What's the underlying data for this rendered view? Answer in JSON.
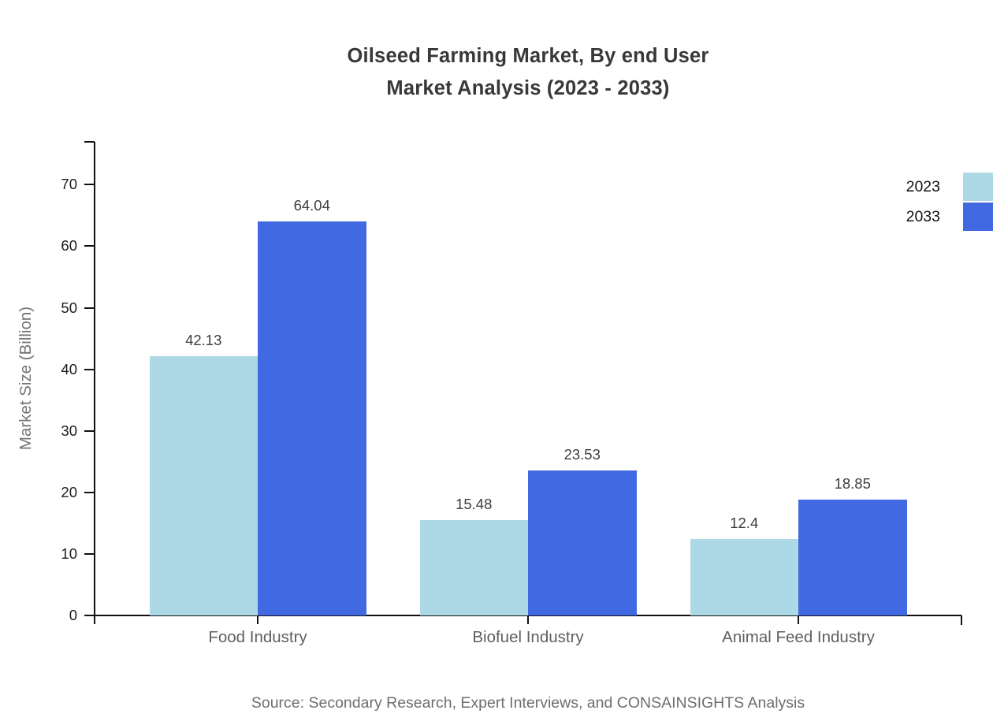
{
  "title_line1": "Oilseed Farming Market, By end User",
  "title_line2": "Market Analysis (2023 - 2033)",
  "source": "Source: Secondary Research, Expert Interviews, and CONSAINSIGHTS Analysis",
  "chart_data": {
    "type": "bar",
    "title": "Oilseed Farming Market, By end User",
    "subtitle": "Market Analysis (2023 - 2033)",
    "xlabel": "",
    "ylabel": "Market Size (Billion)",
    "categories": [
      "Food Industry",
      "Biofuel Industry",
      "Animal Feed Industry"
    ],
    "series": [
      {
        "name": "2023",
        "color": "#ADD8E6",
        "values": [
          42.13,
          15.48,
          12.4
        ],
        "labels": [
          "42.13",
          "15.48",
          "12.4"
        ]
      },
      {
        "name": "2033",
        "color": "#4169E1",
        "values": [
          64.04,
          23.53,
          18.85
        ],
        "labels": [
          "64.04",
          "23.53",
          "18.85"
        ]
      }
    ],
    "yticks": [
      0,
      10,
      20,
      30,
      40,
      50,
      60,
      70
    ],
    "ylim": [
      0,
      77
    ],
    "grid": false,
    "legend_position": "top-right"
  }
}
